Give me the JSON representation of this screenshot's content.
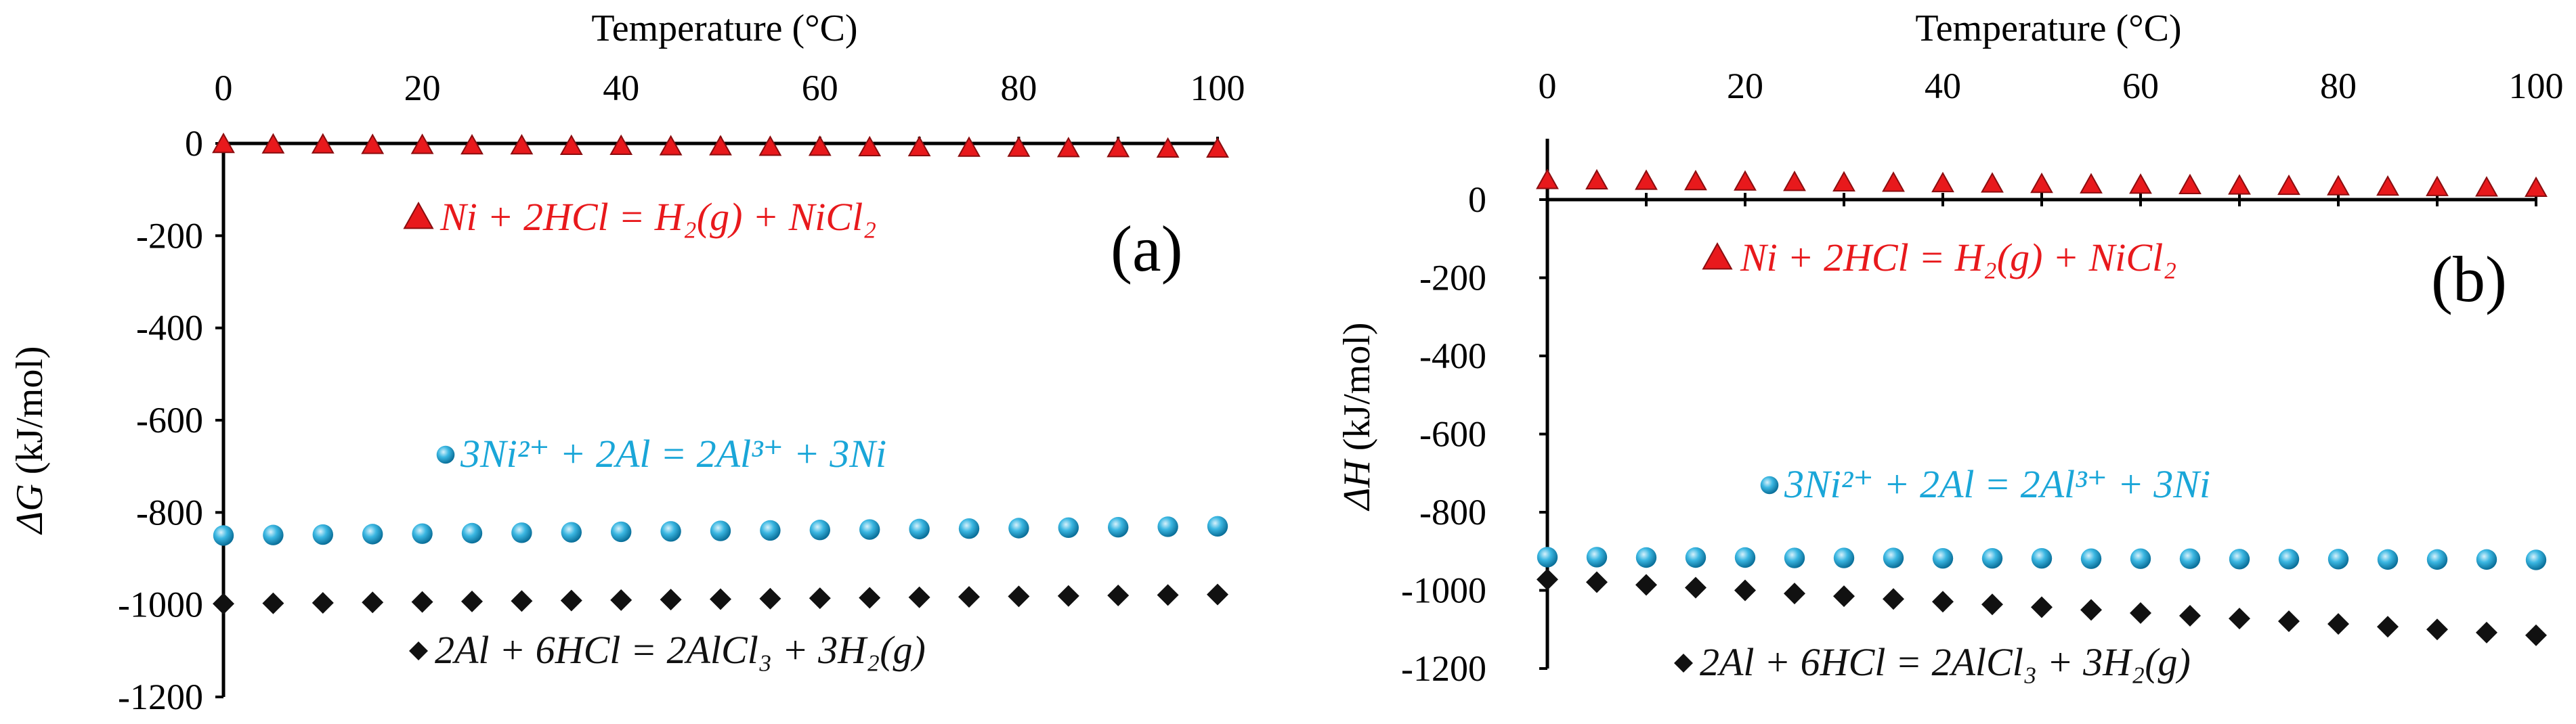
{
  "chart_data": [
    {
      "id": "a",
      "type": "scatter",
      "panel_label": "(a)",
      "x_label": "Temperature (°C)",
      "y_label": "ΔG (kJ/mol)",
      "y_label_symbol": "ΔG",
      "y_label_unit": " (kJ/mol)",
      "xlim": [
        0,
        100
      ],
      "ylim": [
        -1200,
        0
      ],
      "x_ticks": [
        0,
        20,
        40,
        60,
        80,
        100
      ],
      "y_ticks": [
        0,
        -200,
        -400,
        -600,
        -800,
        -1000,
        -1200
      ],
      "x_axis_position": "top",
      "x": [
        0,
        5,
        10,
        15,
        20,
        25,
        30,
        35,
        40,
        45,
        50,
        55,
        60,
        65,
        70,
        75,
        80,
        85,
        90,
        95,
        100
      ],
      "series": [
        {
          "name": "Ni + 2HCl = H2(g) + NiCl2",
          "legend_text": "Ni + 2HCl = H₂(g) + NiCl₂",
          "marker": "triangle",
          "color": "#e8191c",
          "values": [
            -3,
            -4,
            -4,
            -5,
            -5,
            -6,
            -6,
            -7,
            -7,
            -8,
            -8,
            -9,
            -9,
            -10,
            -10,
            -11,
            -11,
            -12,
            -12,
            -13,
            -13
          ]
        },
        {
          "name": "3Ni2+ + 2Al = 2Al3+ + 3Ni",
          "legend_text": "3Ni²⁺ + 2Al = 2Al³⁺ + 3Ni",
          "marker": "circle",
          "color": "#1aa6d8",
          "values": [
            -850,
            -849,
            -848,
            -847,
            -846,
            -845,
            -844,
            -843,
            -842,
            -841,
            -840,
            -839,
            -838,
            -837,
            -836,
            -835,
            -834,
            -833,
            -832,
            -831,
            -830
          ]
        },
        {
          "name": "2Al + 6HCl = 2AlCl3 + 3H2(g)",
          "legend_text": "2Al + 6HCl = 2AlCl₃ + 3H₂(g)",
          "marker": "diamond",
          "color": "#111111",
          "values": [
            -998,
            -997,
            -996,
            -995,
            -994,
            -993,
            -992,
            -991,
            -990,
            -989,
            -988,
            -987,
            -986,
            -985,
            -984,
            -983,
            -982,
            -981,
            -980,
            -979,
            -978
          ]
        }
      ]
    },
    {
      "id": "b",
      "type": "scatter",
      "panel_label": "(b)",
      "x_label": "Temperature (°C)",
      "y_label": "ΔH (kJ/mol)",
      "y_label_symbol": "ΔH",
      "y_label_unit": " (kJ/mol)",
      "xlim": [
        0,
        100
      ],
      "ylim": [
        -1200,
        100
      ],
      "x_ticks": [
        0,
        20,
        40,
        60,
        80,
        100
      ],
      "y_ticks": [
        0,
        -200,
        -400,
        -600,
        -800,
        -1000,
        -1200
      ],
      "x_axis_position": "top",
      "x": [
        0,
        5,
        10,
        15,
        20,
        25,
        30,
        35,
        40,
        45,
        50,
        55,
        60,
        65,
        70,
        75,
        80,
        85,
        90,
        95,
        100
      ],
      "series": [
        {
          "name": "Ni + 2HCl = H2(g) + NiCl2",
          "legend_text": "Ni + 2HCl = H₂(g) + NiCl₂",
          "marker": "triangle",
          "color": "#e8191c",
          "values": [
            48,
            47,
            46,
            45,
            44,
            43,
            42,
            41,
            40,
            39,
            38,
            37,
            36,
            35,
            34,
            33,
            32,
            31,
            30,
            29,
            28
          ]
        },
        {
          "name": "3Ni2+ + 2Al = 2Al3+ + 3Ni",
          "legend_text": "3Ni²⁺ + 2Al = 2Al³⁺ + 3Ni",
          "marker": "circle",
          "color": "#1aa6d8",
          "values": [
            -915,
            -915,
            -916,
            -916,
            -916,
            -917,
            -917,
            -917,
            -918,
            -918,
            -918,
            -919,
            -919,
            -919,
            -920,
            -920,
            -920,
            -921,
            -921,
            -921,
            -922
          ]
        },
        {
          "name": "2Al + 6HCl = 2AlCl3 + 3H2(g)",
          "legend_text": "2Al + 6HCl = 2AlCl₃ + 3H₂(g)",
          "marker": "diamond",
          "color": "#111111",
          "values": [
            -972,
            -979,
            -986,
            -993,
            -1000,
            -1008,
            -1015,
            -1022,
            -1029,
            -1036,
            -1043,
            -1050,
            -1058,
            -1065,
            -1072,
            -1079,
            -1086,
            -1093,
            -1100,
            -1108,
            -1115
          ]
        }
      ]
    }
  ]
}
